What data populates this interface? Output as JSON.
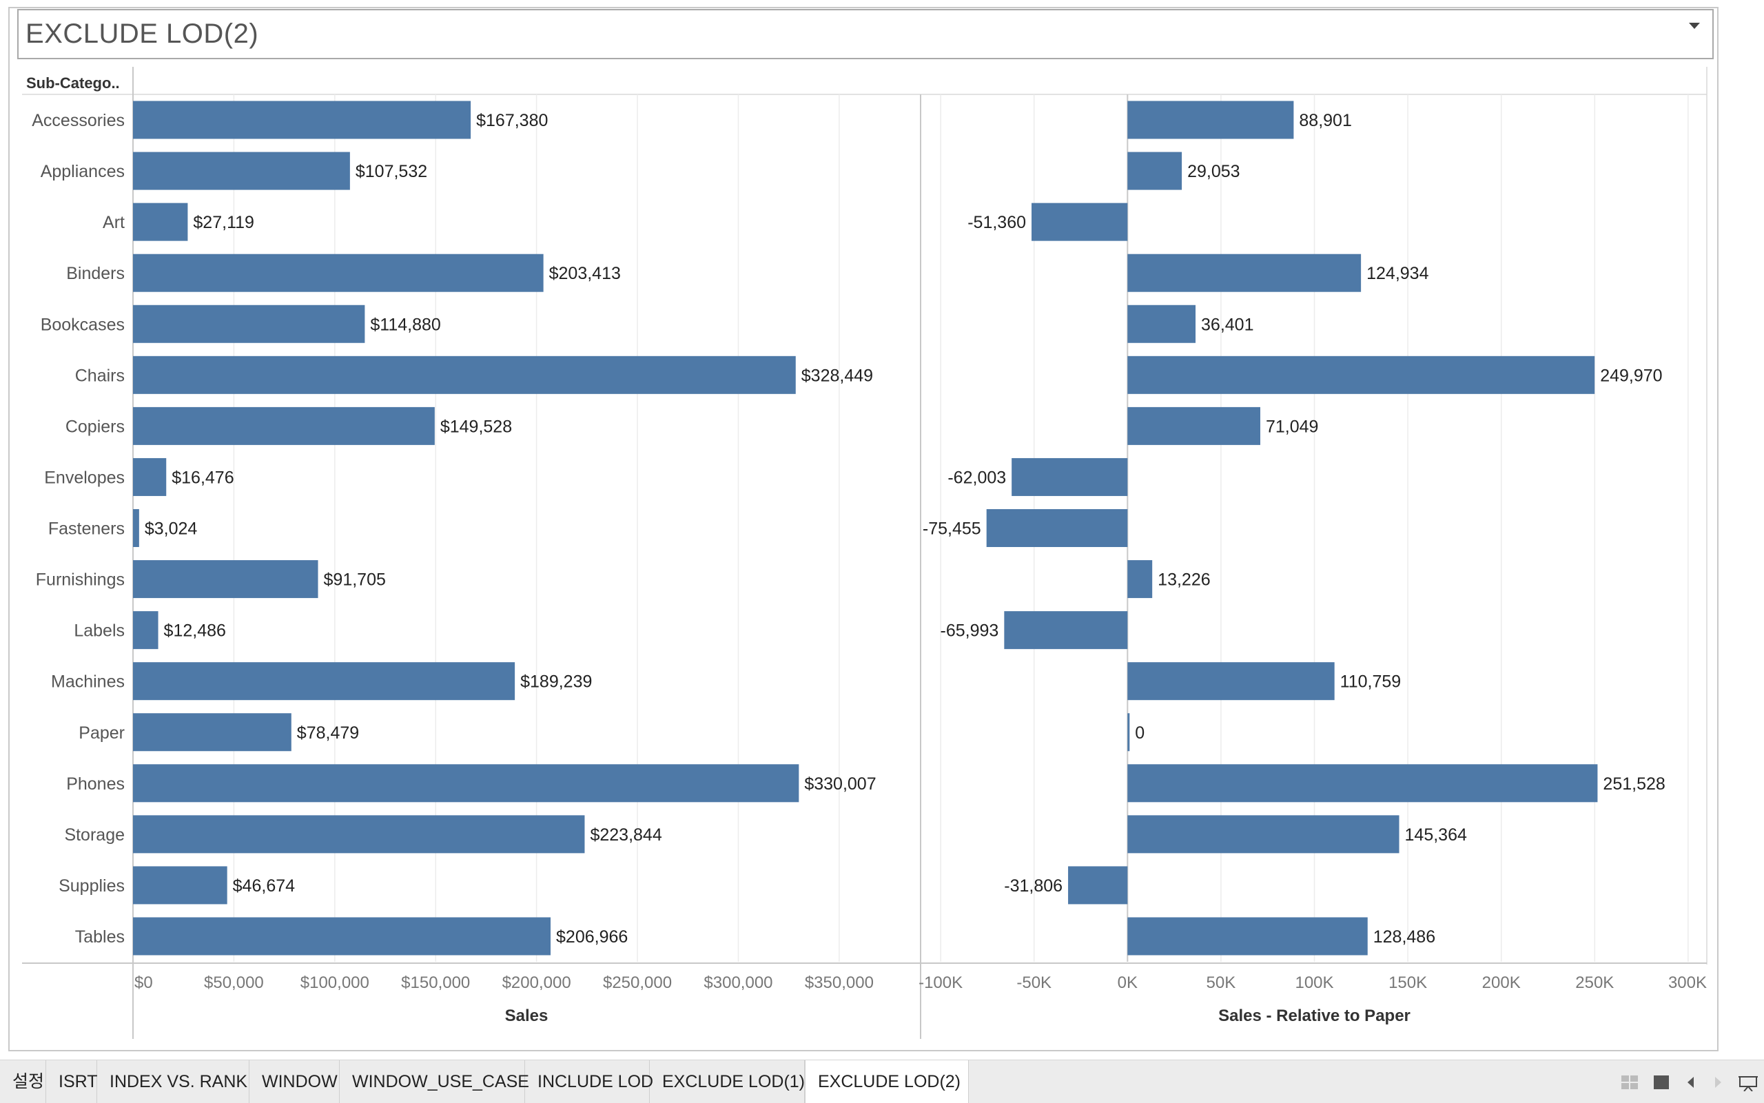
{
  "title": "EXCLUDE LOD(2)",
  "row_header": "Sub-Catego..",
  "chart_data": [
    {
      "type": "bar",
      "orientation": "horizontal",
      "categories": [
        "Accessories",
        "Appliances",
        "Art",
        "Binders",
        "Bookcases",
        "Chairs",
        "Copiers",
        "Envelopes",
        "Fasteners",
        "Furnishings",
        "Labels",
        "Machines",
        "Paper",
        "Phones",
        "Storage",
        "Supplies",
        "Tables"
      ],
      "values": [
        167380,
        107532,
        27119,
        203413,
        114880,
        328449,
        149528,
        16476,
        3024,
        91705,
        12486,
        189239,
        78479,
        330007,
        223844,
        46674,
        206966
      ],
      "data_labels": [
        "$167,380",
        "$107,532",
        "$27,119",
        "$203,413",
        "$114,880",
        "$328,449",
        "$149,528",
        "$16,476",
        "$3,024",
        "$91,705",
        "$12,486",
        "$189,239",
        "$78,479",
        "$330,007",
        "$223,844",
        "$46,674",
        "$206,966"
      ],
      "xlabel": "Sales",
      "xlim": [
        0,
        390000
      ],
      "ticks": [
        0,
        50000,
        100000,
        150000,
        200000,
        250000,
        300000,
        350000
      ],
      "tick_labels": [
        "$0",
        "$50,000",
        "$100,000",
        "$150,000",
        "$200,000",
        "$250,000",
        "$300,000",
        "$350,000"
      ],
      "bar_color": "#4e79a7",
      "grid": true
    },
    {
      "type": "bar",
      "orientation": "horizontal",
      "categories": [
        "Accessories",
        "Appliances",
        "Art",
        "Binders",
        "Bookcases",
        "Chairs",
        "Copiers",
        "Envelopes",
        "Fasteners",
        "Furnishings",
        "Labels",
        "Machines",
        "Paper",
        "Phones",
        "Storage",
        "Supplies",
        "Tables"
      ],
      "values": [
        88901,
        29053,
        -51360,
        124934,
        36401,
        249970,
        71049,
        -62003,
        -75455,
        13226,
        -65993,
        110759,
        0,
        251528,
        145364,
        -31806,
        128486
      ],
      "data_labels": [
        "88,901",
        "29,053",
        "-51,360",
        "124,934",
        "36,401",
        "249,970",
        "71,049",
        "-62,003",
        "-75,455",
        "13,226",
        "-65,993",
        "110,759",
        "0",
        "251,528",
        "145,364",
        "-31,806",
        "128,486"
      ],
      "xlabel": "Sales - Relative to Paper",
      "xlim": [
        -110000,
        310000
      ],
      "ticks": [
        -100000,
        -50000,
        0,
        50000,
        100000,
        150000,
        200000,
        250000,
        300000
      ],
      "tick_labels": [
        "-100K",
        "-50K",
        "0K",
        "50K",
        "100K",
        "150K",
        "200K",
        "250K",
        "300K"
      ],
      "bar_color": "#4e79a7",
      "grid": true
    }
  ],
  "tabs": [
    {
      "label": "설정",
      "active": false
    },
    {
      "label": "ISRT",
      "active": false
    },
    {
      "label": "INDEX VS. RANK",
      "active": false
    },
    {
      "label": "WINDOW",
      "active": false
    },
    {
      "label": "WINDOW_USE_CASE",
      "active": false
    },
    {
      "label": "INCLUDE LOD",
      "active": false
    },
    {
      "label": "EXCLUDE LOD(1)",
      "active": false
    },
    {
      "label": "EXCLUDE LOD(2)",
      "active": true
    }
  ],
  "nav_icons": [
    "grid-view-icon",
    "filmstrip-view-icon",
    "prev-sheet-icon",
    "next-sheet-icon",
    "presentation-mode-icon"
  ]
}
